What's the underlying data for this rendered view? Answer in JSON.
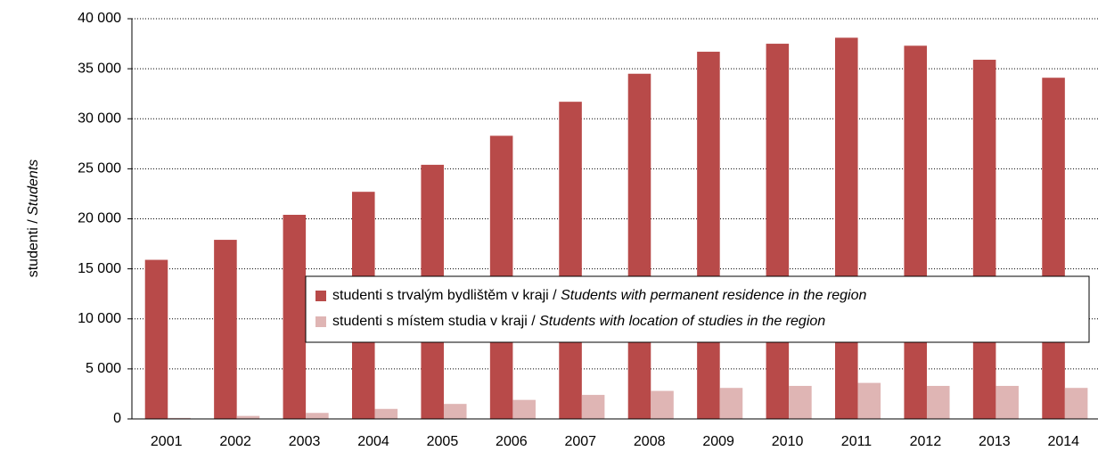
{
  "chart_data": {
    "type": "bar",
    "y_label": "studenti / Students",
    "categories": [
      "2001",
      "2002",
      "2003",
      "2004",
      "2005",
      "2006",
      "2007",
      "2008",
      "2009",
      "2010",
      "2011",
      "2012",
      "2013",
      "2014"
    ],
    "series": [
      {
        "name": "studenti s trvalým bydlištěm v kraji / Students with permanent residence in the region",
        "color": "#b84a49",
        "values": [
          15900,
          17900,
          20400,
          22700,
          25400,
          28300,
          31700,
          34500,
          36700,
          37500,
          38100,
          37300,
          35900,
          34100
        ]
      },
      {
        "name": "studenti s místem studia v kraji / Students with location of studies in the region",
        "color": "#dfb5b4",
        "values": [
          100,
          300,
          600,
          1000,
          1500,
          1900,
          2400,
          2800,
          3100,
          3300,
          3600,
          3300,
          3300,
          3100
        ]
      }
    ],
    "ylim": [
      0,
      40000
    ],
    "yticks": [
      0,
      {
        "value": 5000,
        "label": "5 000"
      },
      {
        "value": 10000,
        "label": "10 000"
      },
      {
        "value": 15000,
        "label": "15 000"
      },
      {
        "value": 20000,
        "label": "20 000"
      },
      {
        "value": 25000,
        "label": "25 000"
      },
      {
        "value": 30000,
        "label": "30 000"
      },
      {
        "value": 35000,
        "label": "35 000"
      },
      {
        "value": 40000,
        "label": "40 000"
      }
    ],
    "grid": true
  }
}
